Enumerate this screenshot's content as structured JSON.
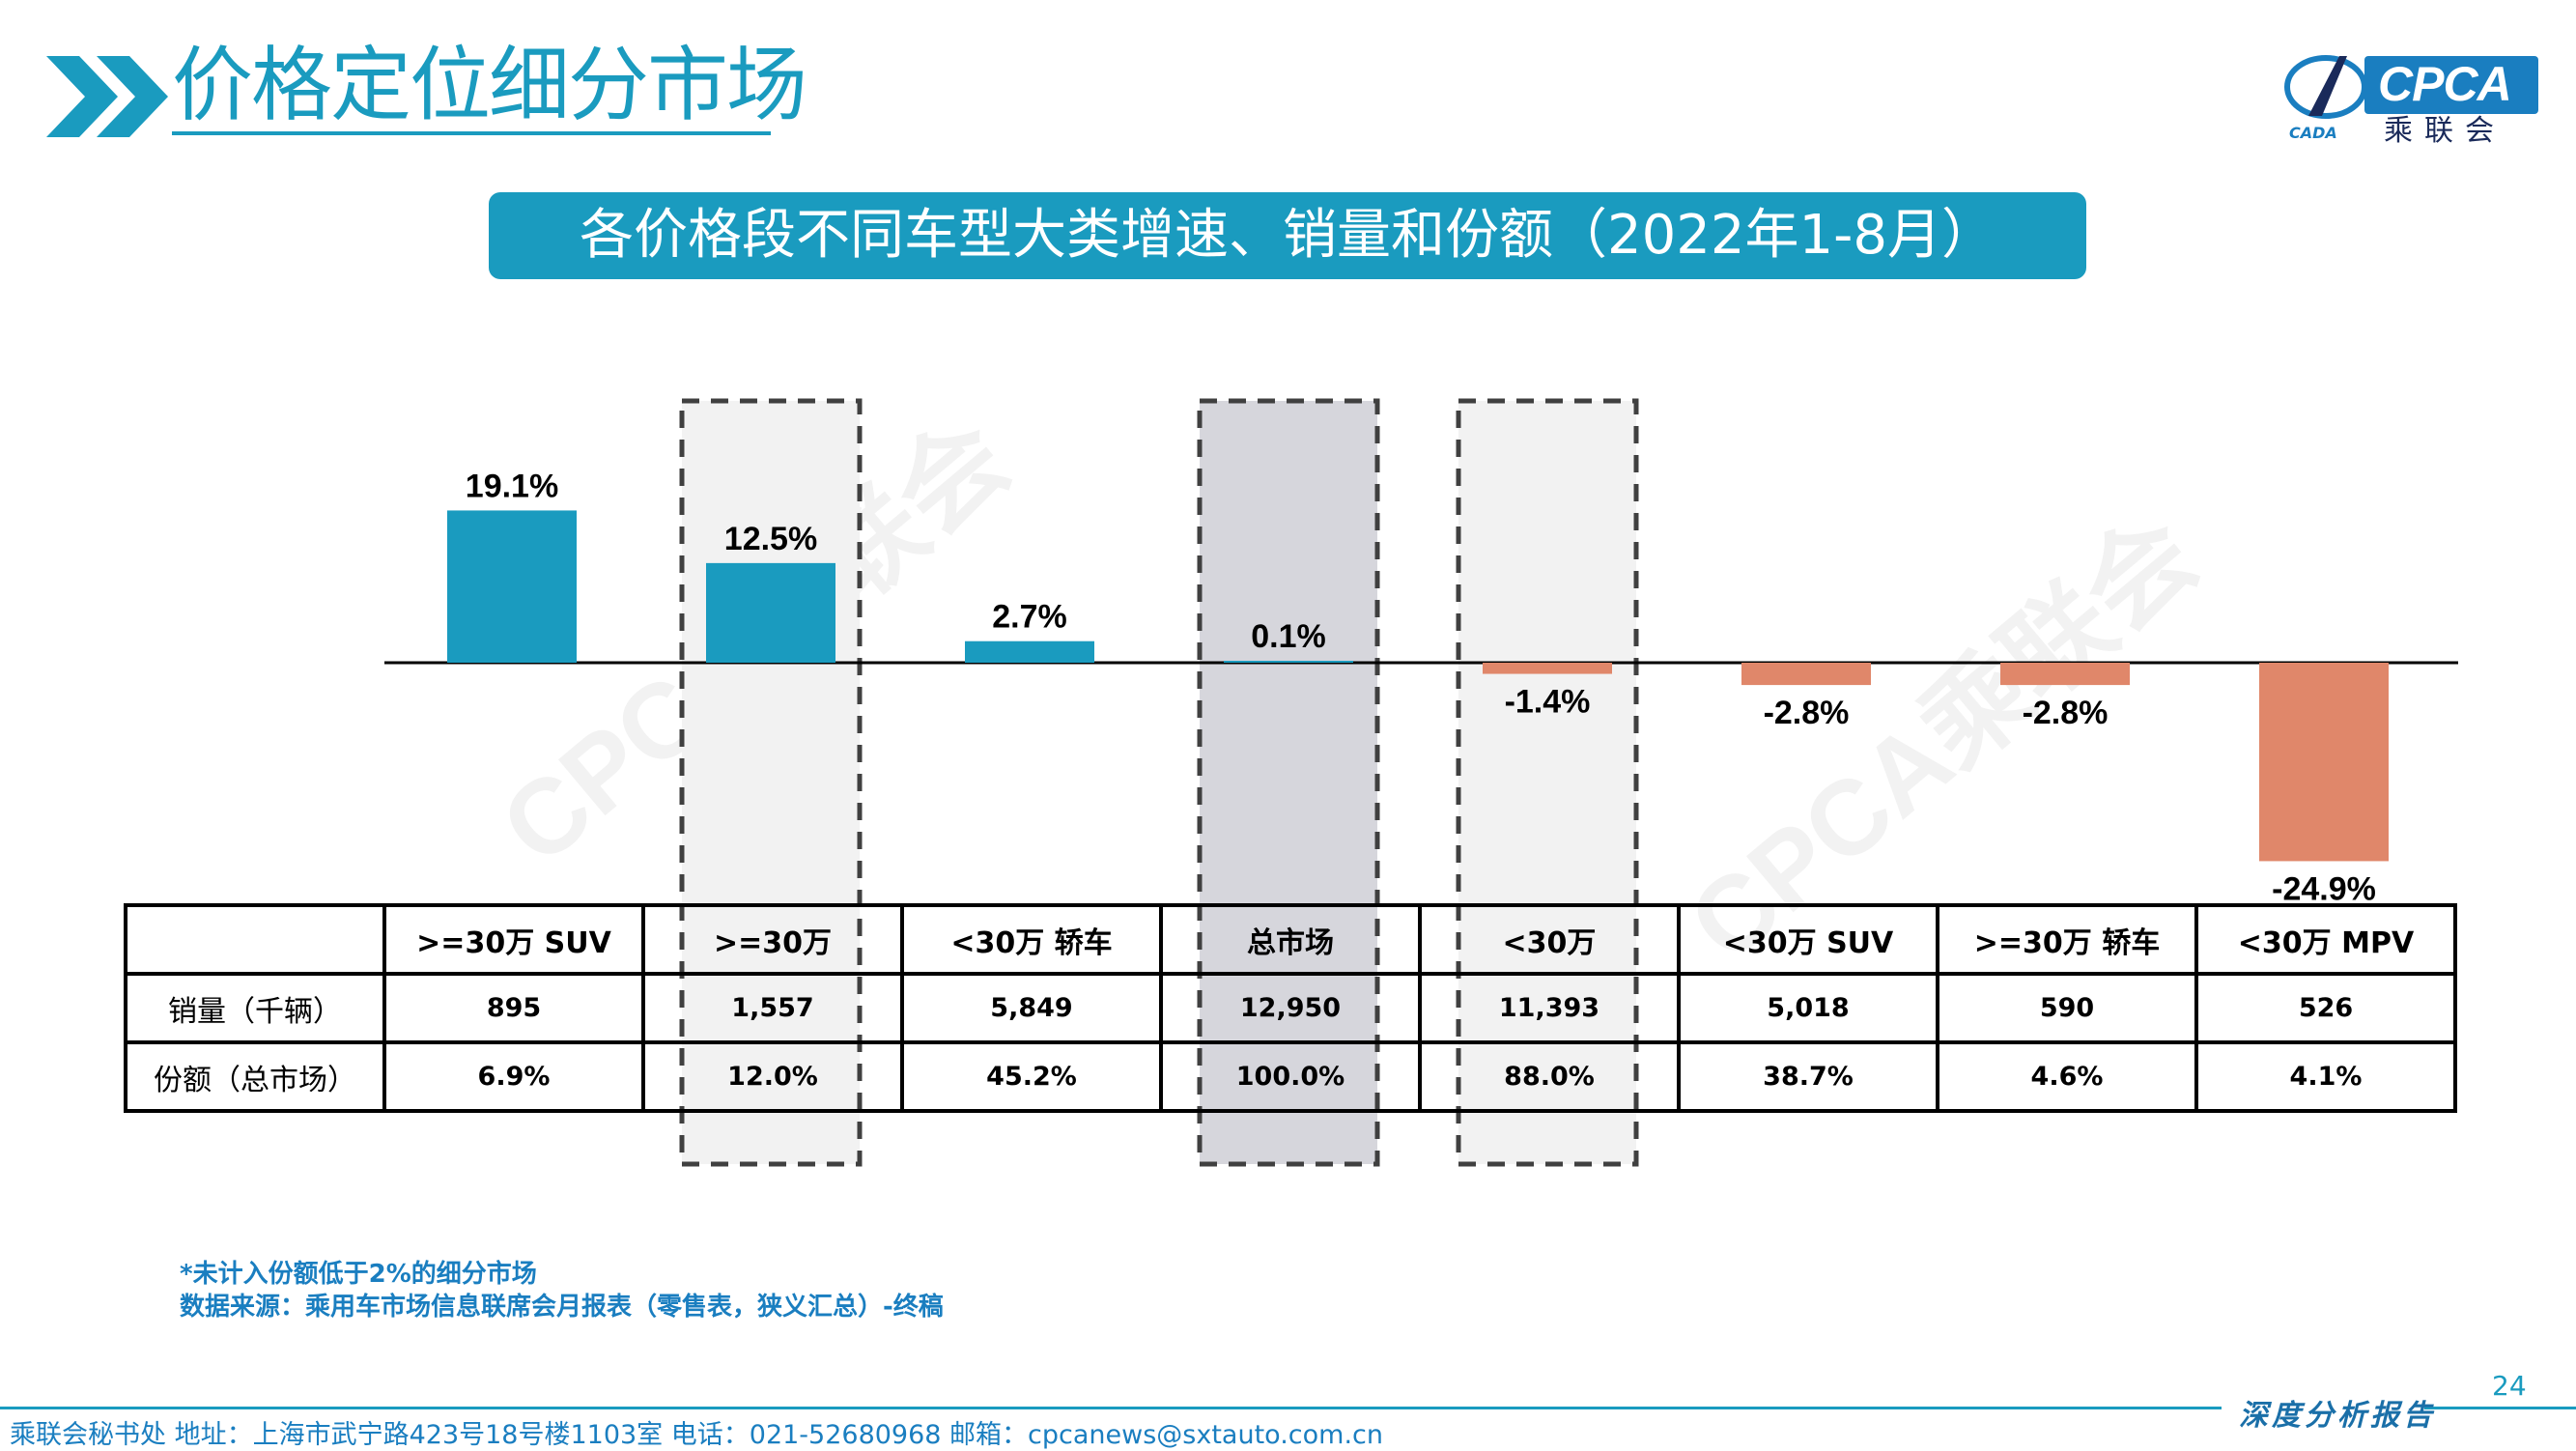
{
  "header": {
    "title": "价格定位细分市场",
    "banner": "各价格段不同车型大类增速、销量和份额（2022年1-8月）"
  },
  "logo": {
    "en": "CPCA",
    "cn": "乘联会",
    "sub": "CADA"
  },
  "watermark": [
    "CPCA乘联会",
    "CPCA乘联会"
  ],
  "colors": {
    "accent": "#1a9bbf",
    "positive": "#1a9bbf",
    "negative": "#e0876a"
  },
  "chart_data": {
    "type": "bar",
    "categories": [
      ">=30万 SUV",
      ">=30万",
      "<30万 轿车",
      "总市场",
      "<30万",
      "<30万 SUV",
      ">=30万 轿车",
      "<30万 MPV"
    ],
    "values": [
      19.1,
      12.5,
      2.7,
      0.1,
      -1.4,
      -2.8,
      -2.8,
      -24.9
    ],
    "labels": [
      "19.1%",
      "12.5%",
      "2.7%",
      "0.1%",
      "-1.4%",
      "-2.8%",
      "-2.8%",
      "-24.9%"
    ],
    "highlighted": [
      ">=30万",
      "总市场",
      "<30万"
    ],
    "grid": false
  },
  "table": {
    "headers": [
      "",
      ">=30万 SUV",
      ">=30万",
      "<30万 轿车",
      "总市场",
      "<30万",
      "<30万 SUV",
      ">=30万 轿车",
      "<30万 MPV"
    ],
    "rows": [
      [
        "销量（千辆）",
        "895",
        "1,557",
        "5,849",
        "12,950",
        "11,393",
        "5,018",
        "590",
        "526"
      ],
      [
        "份额（总市场）",
        "6.9%",
        "12.0%",
        "45.2%",
        "100.0%",
        "88.0%",
        "38.7%",
        "4.6%",
        "4.1%"
      ]
    ]
  },
  "notes": {
    "note1": "*未计入份额低于2%的细分市场",
    "note2": "数据来源：乘用车市场信息联席会月报表（零售表，狭义汇总）-终稿"
  },
  "footer": {
    "page_number": "24",
    "contact": "乘联会秘书处   地址：上海市武宁路423号18号楼1103室   电话：021-52680968   邮箱：cpcanews@sxtauto.com.cn",
    "tag": "深度分析报告"
  }
}
